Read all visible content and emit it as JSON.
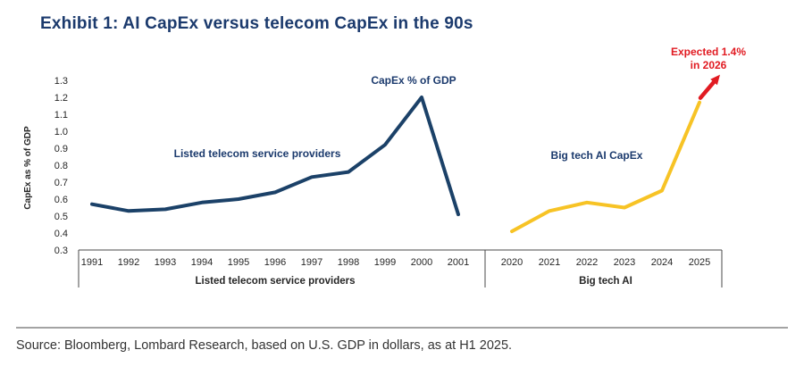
{
  "title": "Exhibit 1: AI CapEx versus telecom CapEx in the 90s",
  "source": "Source: Bloomberg, Lombard Research, based on U.S. GDP in dollars, as at H1 2025.",
  "colors": {
    "title_navy": "#1b3a6d",
    "line_navy": "#1b4168",
    "gold": "#f7c325",
    "red": "#e11b22",
    "axis": "#4a4a4a",
    "tick_text": "#262626"
  },
  "chart_data": {
    "type": "line",
    "title": "Exhibit 1: AI CapEx versus telecom CapEx in the 90s",
    "ylabel": "CapEx as % of GDP",
    "ylim": [
      0.3,
      1.3
    ],
    "yticks": [
      1.3,
      1.2,
      1.1,
      1.0,
      0.9,
      0.8,
      0.7,
      0.6,
      0.5,
      0.4,
      0.3
    ],
    "grid": false,
    "legend_position": "none",
    "series": [
      {
        "name": "Listed telecom service providers",
        "color": "#1b4168",
        "x": [
          1991,
          1992,
          1993,
          1994,
          1995,
          1996,
          1997,
          1998,
          1999,
          2000,
          2001
        ],
        "values": [
          0.57,
          0.53,
          0.54,
          0.58,
          0.6,
          0.64,
          0.73,
          0.76,
          0.92,
          1.2,
          0.51
        ]
      },
      {
        "name": "Big tech AI",
        "color": "#f7c325",
        "x": [
          2020,
          2021,
          2022,
          2023,
          2024,
          2025
        ],
        "values": [
          0.41,
          0.53,
          0.58,
          0.55,
          0.65,
          1.17
        ]
      }
    ],
    "projection": {
      "label_line1": "Expected 1.4%",
      "label_line2": "in 2026",
      "year": 2026,
      "value": 1.4,
      "color": "#e11b22"
    },
    "annotations": {
      "capex_gdp": "CapEx % of GDP",
      "telecom": "Listed telecom service providers",
      "ai": "Big tech AI CapEx"
    },
    "group_labels": [
      "Listed telecom service providers",
      "Big tech AI"
    ]
  }
}
